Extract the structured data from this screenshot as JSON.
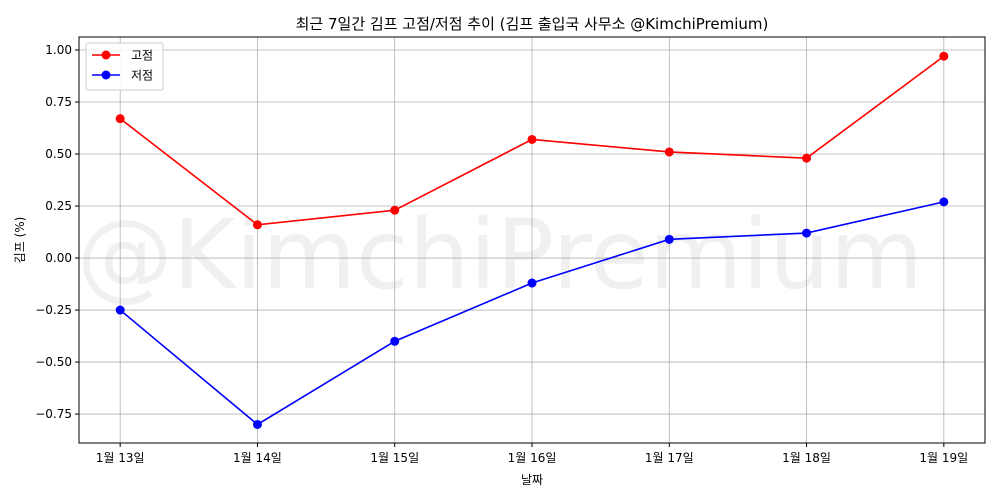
{
  "chart_data": {
    "type": "line",
    "title": "최근 7일간 김프 고점/저점 추이 (김프 출입국 사무소 @KimchiPremium)",
    "xlabel": "날짜",
    "ylabel": "김프 (%)",
    "watermark": "@KimchiPremium",
    "categories": [
      "1월 13일",
      "1월 14일",
      "1월 15일",
      "1월 16일",
      "1월 17일",
      "1월 18일",
      "1월 19일"
    ],
    "yticks": [
      -0.75,
      -0.5,
      -0.25,
      0,
      0.25,
      0.5,
      0.75,
      1.0
    ],
    "ytick_labels": [
      "−0.75",
      "−0.50",
      "−0.25",
      "0.00",
      "0.25",
      "0.50",
      "0.75",
      "1.00"
    ],
    "ylim": [
      -0.889,
      1.0625
    ],
    "grid": true,
    "legend_position": "top-left",
    "series": [
      {
        "name": "고점",
        "color": "#ff0000",
        "marker": "circle",
        "values": [
          0.67,
          0.16,
          0.23,
          0.57,
          0.51,
          0.48,
          0.97
        ]
      },
      {
        "name": "저점",
        "color": "#0000ff",
        "marker": "circle",
        "values": [
          -0.25,
          -0.8,
          -0.4,
          -0.12,
          0.09,
          0.12,
          0.27
        ]
      }
    ]
  }
}
